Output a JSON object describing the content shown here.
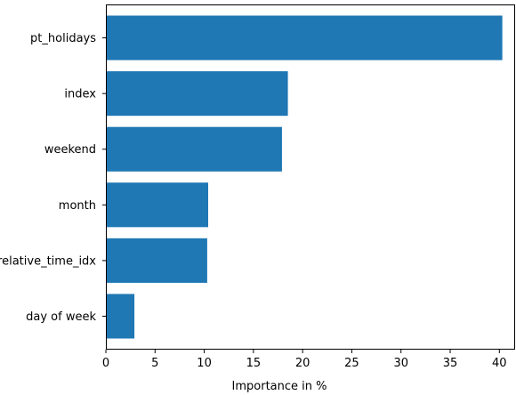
{
  "chart_data": {
    "type": "bar",
    "orientation": "horizontal",
    "title": "",
    "xlabel": "Importance in %",
    "ylabel": "",
    "categories": [
      "pt_holidays",
      "index",
      "weekend",
      "month",
      "relative_time_idx",
      "day of week"
    ],
    "values": [
      40.3,
      18.5,
      17.9,
      10.4,
      10.3,
      2.9
    ],
    "xlim": [
      0,
      41.6
    ],
    "xticks": [
      0,
      5,
      10,
      15,
      20,
      25,
      30,
      35,
      40
    ],
    "bar_color": "#1f77b4",
    "grid": false,
    "legend": false
  }
}
